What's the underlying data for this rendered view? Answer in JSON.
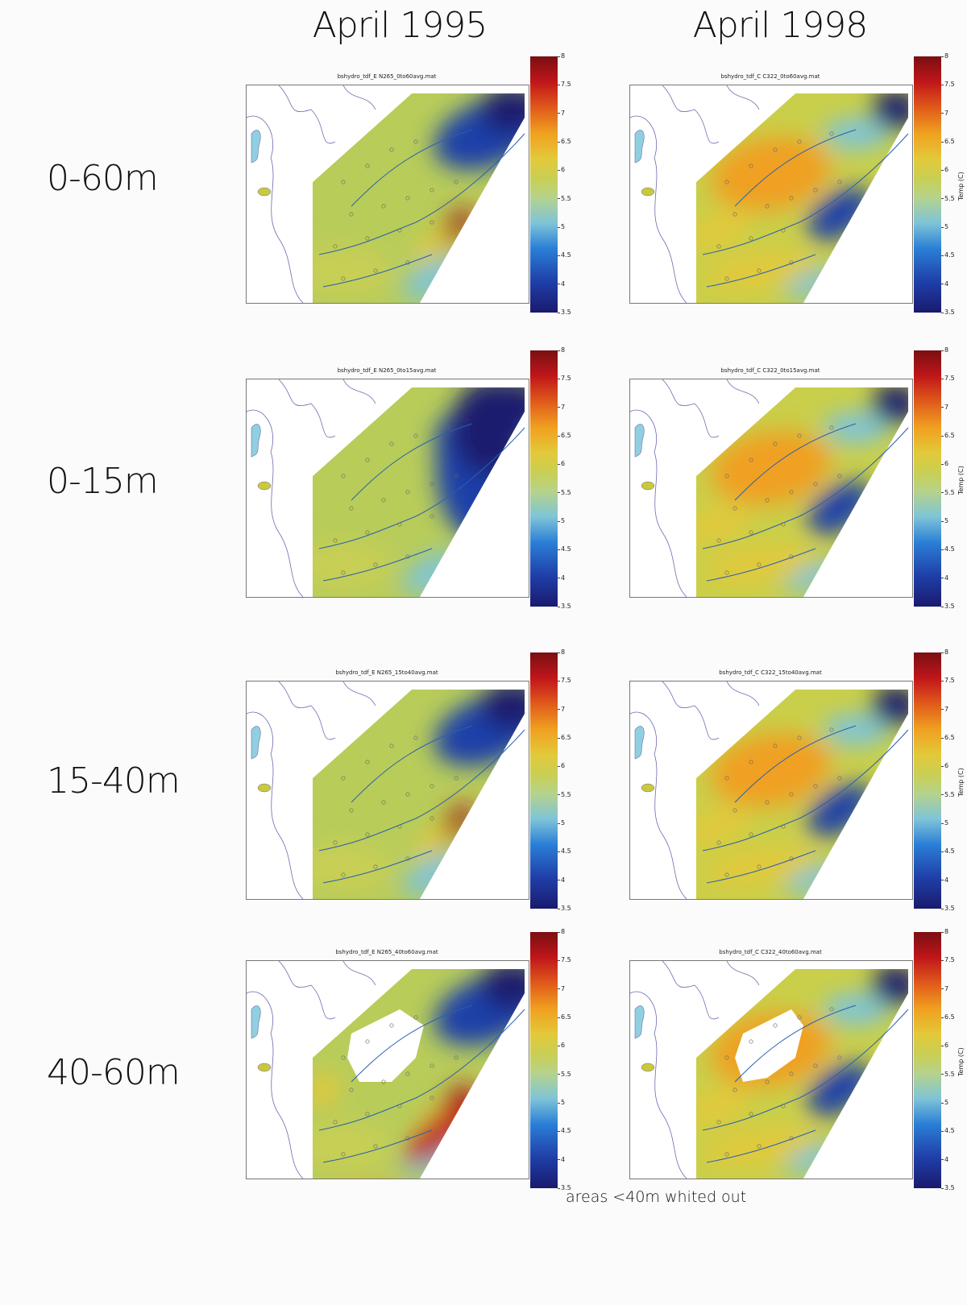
{
  "columns": [
    {
      "title": "April 1995"
    },
    {
      "title": "April 1998"
    }
  ],
  "rows": [
    {
      "label": "0-60m",
      "panels": [
        {
          "title": "bshydro_tdf_E N265_0to60avg.mat",
          "colorbar_label": ""
        },
        {
          "title": "bshydro_tdf_C C322_0to60avg.mat",
          "colorbar_label": "Temp (C)"
        }
      ]
    },
    {
      "label": "0-15m",
      "panels": [
        {
          "title": "bshydro_tdf_E N265_0to15avg.mat",
          "colorbar_label": ""
        },
        {
          "title": "bshydro_tdf_C C322_0to15avg.mat",
          "colorbar_label": "Temp (C)"
        }
      ]
    },
    {
      "label": "15-40m",
      "panels": [
        {
          "title": "bshydro_tdf_E N265_15to40avg.mat",
          "colorbar_label": ""
        },
        {
          "title": "bshydro_tdf_C C322_15to40avg.mat",
          "colorbar_label": "Temp (C)"
        }
      ]
    },
    {
      "label": "40-60m",
      "panels": [
        {
          "title": "bshydro_tdf_E N265_40to60avg.mat",
          "colorbar_label": ""
        },
        {
          "title": "bshydro_tdf_C C322_40to60avg.mat",
          "colorbar_label": "Temp (C)"
        }
      ]
    }
  ],
  "note": "areas <40m whited out",
  "chart_data": {
    "type": "heatmap",
    "colorbar": {
      "min": 3.5,
      "max": 8,
      "ticks": [
        "8",
        "7.5",
        "7",
        "6.5",
        "6",
        "5.5",
        "5",
        "4.5",
        "4",
        "3.5"
      ],
      "label": "Temp (C)"
    },
    "panels": [
      {
        "column": "April 1995",
        "row": "0-60m"
      },
      {
        "column": "April 1998",
        "row": "0-60m"
      },
      {
        "column": "April 1995",
        "row": "0-15m"
      },
      {
        "column": "April 1998",
        "row": "0-15m"
      },
      {
        "column": "April 1995",
        "row": "15-40m"
      },
      {
        "column": "April 1998",
        "row": "15-40m"
      },
      {
        "column": "April 1995",
        "row": "40-60m"
      },
      {
        "column": "April 1998",
        "row": "40-60m"
      }
    ]
  },
  "colors": {
    "land": "#8fd0e0",
    "island": "#c9c93a",
    "coast_line": "#6b6bb0",
    "contour": "#2a5fb0"
  }
}
